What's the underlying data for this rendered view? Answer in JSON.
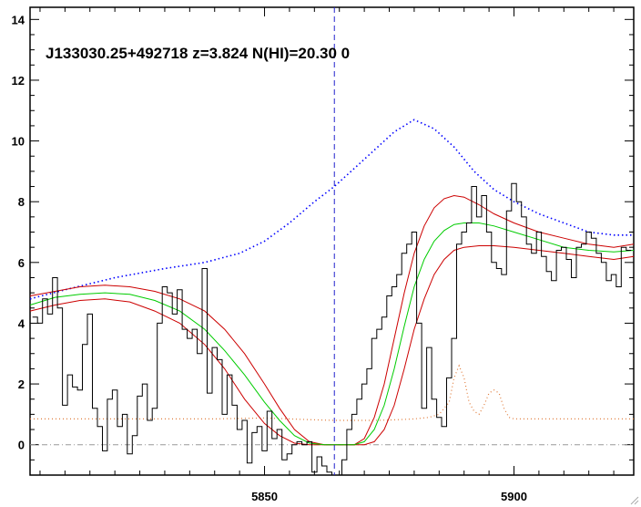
{
  "chart_data": {
    "type": "line",
    "title": "J133030.25+492718 z=3.824 N(HI)=20.30 0",
    "xlabel": "",
    "ylabel": "",
    "xlim": [
      5803,
      5924
    ],
    "ylim": [
      -1,
      14.4
    ],
    "x_ticks": [
      5850,
      5900
    ],
    "y_ticks": [
      0,
      2,
      4,
      6,
      8,
      10,
      12,
      14
    ],
    "grid": false,
    "vline_x": 5864,
    "zero_line_y": 0,
    "colors": {
      "flux": "#000000",
      "continuum": "#0000ff",
      "model": "#00cc00",
      "model_bounds": "#cc0000",
      "error": "#e07b39",
      "zero_line": "#999999",
      "vline": "#2222cc"
    },
    "series": [
      {
        "role": "flux-histogram",
        "x": [
          5804,
          5805,
          5806,
          5807,
          5808,
          5809,
          5810,
          5811,
          5812,
          5813,
          5814,
          5815,
          5816,
          5817,
          5818,
          5819,
          5820,
          5821,
          5822,
          5823,
          5824,
          5825,
          5826,
          5827,
          5828,
          5829,
          5830,
          5831,
          5832,
          5833,
          5834,
          5835,
          5836,
          5837,
          5838,
          5839,
          5840,
          5841,
          5842,
          5843,
          5844,
          5845,
          5846,
          5847,
          5848,
          5849,
          5850,
          5851,
          5852,
          5853,
          5854,
          5855,
          5856,
          5857,
          5858,
          5859,
          5860,
          5861,
          5862,
          5863,
          5864,
          5865,
          5866,
          5867,
          5868,
          5869,
          5870,
          5871,
          5872,
          5873,
          5874,
          5875,
          5876,
          5877,
          5878,
          5879,
          5880,
          5881,
          5882,
          5883,
          5884,
          5885,
          5886,
          5887,
          5888,
          5889,
          5890,
          5891,
          5892,
          5893,
          5894,
          5895,
          5896,
          5897,
          5898,
          5899,
          5900,
          5901,
          5902,
          5903,
          5904,
          5905,
          5906,
          5907,
          5908,
          5909,
          5910,
          5911,
          5912,
          5913,
          5914,
          5915,
          5916,
          5917,
          5918,
          5919,
          5920,
          5921,
          5922,
          5923
        ],
        "y": [
          4.2,
          4.0,
          4.8,
          4.3,
          5.5,
          4.5,
          1.3,
          2.3,
          1.9,
          1.8,
          3.3,
          4.3,
          1.2,
          0.6,
          -0.2,
          1.5,
          1.8,
          0.6,
          1.0,
          -0.3,
          0.3,
          1.6,
          2.0,
          0.8,
          1.2,
          4.0,
          5.2,
          5.0,
          4.3,
          5.1,
          3.8,
          3.5,
          3.8,
          3.0,
          5.8,
          1.7,
          3.2,
          2.8,
          1.0,
          2.3,
          1.3,
          0.5,
          0.8,
          -0.6,
          0.4,
          0.6,
          -0.2,
          1.1,
          0.2,
          0.5,
          -0.5,
          -0.3,
          0.0,
          0.1,
          0.0,
          0.1,
          -0.9,
          -0.4,
          -0.7,
          -0.9,
          -1.2,
          -1.1,
          -0.5,
          0.5,
          1.0,
          1.5,
          2.0,
          2.5,
          3.5,
          3.8,
          4.2,
          4.9,
          5.2,
          5.6,
          6.3,
          6.6,
          7.0,
          4.0,
          1.2,
          3.2,
          1.5,
          0.9,
          0.6,
          2.2,
          3.5,
          6.6,
          7.0,
          7.3,
          8.5,
          7.5,
          8.2,
          7.0,
          6.0,
          5.8,
          5.6,
          7.7,
          8.6,
          8.0,
          7.5,
          6.6,
          6.3,
          7.0,
          6.2,
          5.7,
          5.4,
          6.4,
          6.5,
          6.1,
          5.5,
          6.5,
          6.6,
          7.0,
          6.8,
          6.3,
          6.0,
          5.4,
          5.6,
          5.2,
          6.5,
          6.4
        ]
      },
      {
        "role": "continuum-dotted",
        "x": [
          5803,
          5810,
          5820,
          5830,
          5838,
          5845,
          5850,
          5855,
          5860,
          5864,
          5868,
          5872,
          5876,
          5880,
          5884,
          5888,
          5892,
          5896,
          5900,
          5905,
          5910,
          5915,
          5920,
          5924
        ],
        "y": [
          4.8,
          5.1,
          5.5,
          5.8,
          6.0,
          6.3,
          6.7,
          7.3,
          8.0,
          8.5,
          9.1,
          9.7,
          10.3,
          10.7,
          10.4,
          9.8,
          9.0,
          8.4,
          8.0,
          7.6,
          7.3,
          7.0,
          6.9,
          6.9
        ]
      },
      {
        "role": "model-green",
        "x": [
          5803,
          5808,
          5813,
          5818,
          5823,
          5828,
          5833,
          5838,
          5842,
          5846,
          5850,
          5853,
          5856,
          5859,
          5862,
          5865,
          5868,
          5870,
          5872,
          5874,
          5876,
          5878,
          5880,
          5882,
          5884,
          5886,
          5888,
          5890,
          5893,
          5896,
          5900,
          5905,
          5910,
          5915,
          5920,
          5924
        ],
        "y": [
          4.6,
          4.85,
          4.95,
          5.0,
          4.95,
          4.75,
          4.4,
          3.8,
          3.1,
          2.3,
          1.4,
          0.8,
          0.3,
          0.05,
          0.0,
          0.0,
          0.0,
          0.1,
          0.5,
          1.3,
          2.5,
          3.9,
          5.2,
          6.1,
          6.7,
          7.05,
          7.25,
          7.3,
          7.3,
          7.2,
          7.0,
          6.75,
          6.5,
          6.4,
          6.35,
          6.4
        ]
      },
      {
        "role": "model-upper-red",
        "x": [
          5803,
          5808,
          5813,
          5818,
          5823,
          5828,
          5833,
          5838,
          5842,
          5846,
          5850,
          5853,
          5856,
          5859,
          5862,
          5865,
          5868,
          5870,
          5872,
          5874,
          5876,
          5878,
          5880,
          5882,
          5884,
          5886,
          5888,
          5890,
          5893,
          5896,
          5900,
          5905,
          5910,
          5915,
          5920,
          5924
        ],
        "y": [
          4.9,
          5.05,
          5.2,
          5.25,
          5.2,
          5.05,
          4.8,
          4.4,
          3.8,
          3.0,
          2.0,
          1.2,
          0.5,
          0.1,
          0.0,
          0.0,
          0.0,
          0.2,
          0.9,
          2.0,
          3.5,
          5.0,
          6.3,
          7.2,
          7.8,
          8.1,
          8.2,
          8.15,
          7.9,
          7.6,
          7.3,
          7.0,
          6.8,
          6.6,
          6.5,
          6.6
        ]
      },
      {
        "role": "model-lower-red",
        "x": [
          5803,
          5808,
          5813,
          5818,
          5823,
          5828,
          5833,
          5838,
          5842,
          5846,
          5850,
          5853,
          5856,
          5859,
          5862,
          5865,
          5868,
          5870,
          5872,
          5874,
          5876,
          5878,
          5880,
          5882,
          5884,
          5886,
          5888,
          5890,
          5893,
          5896,
          5900,
          5905,
          5910,
          5915,
          5920,
          5924
        ],
        "y": [
          4.4,
          4.6,
          4.75,
          4.8,
          4.7,
          4.4,
          4.0,
          3.3,
          2.5,
          1.5,
          0.7,
          0.3,
          0.05,
          0.0,
          0.0,
          0.0,
          0.0,
          0.0,
          0.1,
          0.5,
          1.3,
          2.5,
          3.8,
          4.8,
          5.6,
          6.1,
          6.4,
          6.5,
          6.55,
          6.55,
          6.5,
          6.4,
          6.3,
          6.2,
          6.1,
          6.2
        ]
      },
      {
        "role": "error-dotted",
        "x": [
          5803,
          5810,
          5820,
          5830,
          5840,
          5850,
          5855,
          5860,
          5864,
          5868,
          5872,
          5876,
          5880,
          5883,
          5885,
          5887,
          5888,
          5889,
          5890,
          5891,
          5892,
          5893,
          5894,
          5895,
          5896,
          5897,
          5898,
          5899,
          5900,
          5905,
          5910,
          5915,
          5920,
          5924
        ],
        "y": [
          0.85,
          0.85,
          0.85,
          0.85,
          0.85,
          0.88,
          0.85,
          0.82,
          0.8,
          0.8,
          0.8,
          0.82,
          0.85,
          0.9,
          1.0,
          1.4,
          2.2,
          2.6,
          2.2,
          1.4,
          1.1,
          1.0,
          1.3,
          1.7,
          1.8,
          1.7,
          1.2,
          0.9,
          0.85,
          0.85,
          0.85,
          0.85,
          0.85,
          0.85
        ]
      }
    ]
  },
  "ui": {
    "resize_grip_icon": "resize-grip-icon"
  }
}
